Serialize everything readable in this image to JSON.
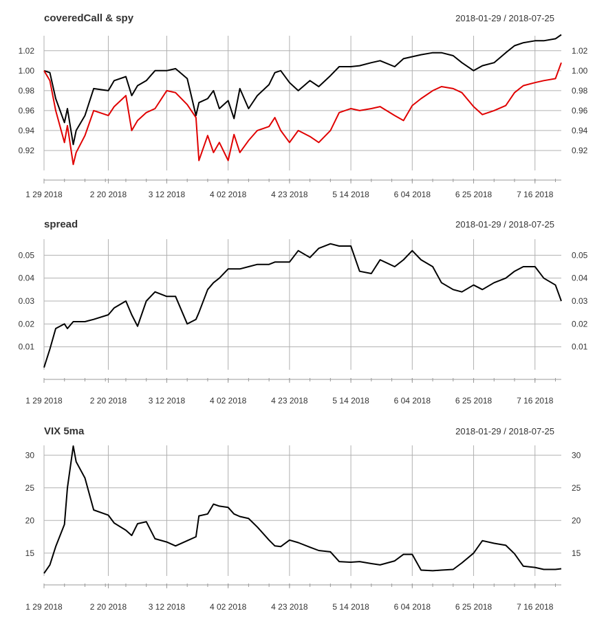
{
  "colors": {
    "primary": "#000000",
    "secondary": "#e00000",
    "grid": "#b0b0b0",
    "axis": "#999999",
    "text": "#333333"
  },
  "x_tick_labels": [
    "1 29 2018",
    "2 20 2018",
    "3 12 2018",
    "4 02 2018",
    "4 23 2018",
    "5 14 2018",
    "6 04 2018",
    "6 25 2018",
    "7 16 2018"
  ],
  "chart_data": [
    {
      "type": "line",
      "title": "coveredCall & spy",
      "date_range": "2018-01-29 / 2018-07-25",
      "ylim": [
        0.9,
        1.035
      ],
      "yticks": [
        "0.92",
        "0.94",
        "0.96",
        "0.98",
        "1.00",
        "1.02"
      ],
      "ytick_values": [
        0.92,
        0.94,
        0.96,
        0.98,
        1.0,
        1.02
      ],
      "x_tick_dates": [
        "2018-01-29",
        "2018-02-20",
        "2018-03-12",
        "2018-04-02",
        "2018-04-23",
        "2018-05-14",
        "2018-06-04",
        "2018-06-25",
        "2018-07-16"
      ],
      "x": [
        "2018-01-29",
        "2018-01-31",
        "2018-02-02",
        "2018-02-05",
        "2018-02-06",
        "2018-02-08",
        "2018-02-09",
        "2018-02-12",
        "2018-02-15",
        "2018-02-20",
        "2018-02-22",
        "2018-02-26",
        "2018-02-28",
        "2018-03-02",
        "2018-03-05",
        "2018-03-08",
        "2018-03-12",
        "2018-03-15",
        "2018-03-19",
        "2018-03-22",
        "2018-03-23",
        "2018-03-26",
        "2018-03-28",
        "2018-03-30",
        "2018-04-02",
        "2018-04-04",
        "2018-04-06",
        "2018-04-09",
        "2018-04-12",
        "2018-04-16",
        "2018-04-18",
        "2018-04-20",
        "2018-04-23",
        "2018-04-26",
        "2018-04-30",
        "2018-05-03",
        "2018-05-07",
        "2018-05-10",
        "2018-05-14",
        "2018-05-17",
        "2018-05-21",
        "2018-05-24",
        "2018-05-29",
        "2018-06-01",
        "2018-06-04",
        "2018-06-07",
        "2018-06-11",
        "2018-06-14",
        "2018-06-18",
        "2018-06-21",
        "2018-06-25",
        "2018-06-28",
        "2018-07-02",
        "2018-07-06",
        "2018-07-09",
        "2018-07-12",
        "2018-07-16",
        "2018-07-19",
        "2018-07-23",
        "2018-07-25"
      ],
      "series": [
        {
          "name": "coveredCall",
          "color": "#000000",
          "values": [
            1.0,
            0.998,
            0.972,
            0.948,
            0.962,
            0.926,
            0.94,
            0.955,
            0.982,
            0.98,
            0.99,
            0.994,
            0.975,
            0.985,
            0.99,
            1.0,
            1.0,
            1.002,
            0.992,
            0.955,
            0.968,
            0.972,
            0.98,
            0.962,
            0.97,
            0.952,
            0.982,
            0.962,
            0.975,
            0.986,
            0.998,
            1.0,
            0.988,
            0.98,
            0.99,
            0.984,
            0.995,
            1.004,
            1.004,
            1.005,
            1.008,
            1.01,
            1.004,
            1.012,
            1.014,
            1.016,
            1.018,
            1.018,
            1.015,
            1.008,
            1.0,
            1.005,
            1.008,
            1.018,
            1.025,
            1.028,
            1.03,
            1.03,
            1.032,
            1.036
          ]
        },
        {
          "name": "spy",
          "color": "#e00000",
          "values": [
            1.0,
            0.99,
            0.96,
            0.928,
            0.945,
            0.906,
            0.918,
            0.935,
            0.96,
            0.955,
            0.964,
            0.975,
            0.94,
            0.95,
            0.958,
            0.962,
            0.98,
            0.978,
            0.966,
            0.953,
            0.91,
            0.935,
            0.918,
            0.928,
            0.91,
            0.936,
            0.918,
            0.93,
            0.94,
            0.944,
            0.953,
            0.94,
            0.928,
            0.94,
            0.934,
            0.928,
            0.94,
            0.958,
            0.962,
            0.96,
            0.962,
            0.964,
            0.955,
            0.95,
            0.965,
            0.972,
            0.98,
            0.984,
            0.982,
            0.978,
            0.964,
            0.956,
            0.96,
            0.965,
            0.978,
            0.985,
            0.988,
            0.99,
            0.992,
            1.008
          ]
        }
      ]
    },
    {
      "type": "line",
      "title": "spread",
      "date_range": "2018-01-29 / 2018-07-25",
      "ylim": [
        0.0,
        0.057
      ],
      "yticks": [
        "0.01",
        "0.02",
        "0.03",
        "0.04",
        "0.05"
      ],
      "ytick_values": [
        0.01,
        0.02,
        0.03,
        0.04,
        0.05
      ],
      "x_tick_dates": [
        "2018-01-29",
        "2018-02-20",
        "2018-03-12",
        "2018-04-02",
        "2018-04-23",
        "2018-05-14",
        "2018-06-04",
        "2018-06-25",
        "2018-07-16"
      ],
      "x": [
        "2018-01-29",
        "2018-01-31",
        "2018-02-02",
        "2018-02-05",
        "2018-02-06",
        "2018-02-08",
        "2018-02-09",
        "2018-02-12",
        "2018-02-15",
        "2018-02-20",
        "2018-02-22",
        "2018-02-26",
        "2018-02-28",
        "2018-03-02",
        "2018-03-05",
        "2018-03-08",
        "2018-03-12",
        "2018-03-15",
        "2018-03-19",
        "2018-03-22",
        "2018-03-23",
        "2018-03-26",
        "2018-03-28",
        "2018-03-30",
        "2018-04-02",
        "2018-04-04",
        "2018-04-06",
        "2018-04-09",
        "2018-04-12",
        "2018-04-16",
        "2018-04-18",
        "2018-04-20",
        "2018-04-23",
        "2018-04-26",
        "2018-04-30",
        "2018-05-03",
        "2018-05-07",
        "2018-05-10",
        "2018-05-14",
        "2018-05-17",
        "2018-05-21",
        "2018-05-24",
        "2018-05-29",
        "2018-06-01",
        "2018-06-04",
        "2018-06-07",
        "2018-06-11",
        "2018-06-14",
        "2018-06-18",
        "2018-06-21",
        "2018-06-25",
        "2018-06-28",
        "2018-07-02",
        "2018-07-06",
        "2018-07-09",
        "2018-07-12",
        "2018-07-16",
        "2018-07-19",
        "2018-07-23",
        "2018-07-25"
      ],
      "series": [
        {
          "name": "",
          "color": "#000000",
          "values": [
            0.001,
            0.009,
            0.018,
            0.02,
            0.018,
            0.021,
            0.021,
            0.021,
            0.022,
            0.024,
            0.027,
            0.03,
            0.024,
            0.019,
            0.03,
            0.034,
            0.032,
            0.032,
            0.02,
            0.022,
            0.025,
            0.035,
            0.038,
            0.04,
            0.044,
            0.044,
            0.044,
            0.045,
            0.046,
            0.046,
            0.047,
            0.047,
            0.047,
            0.052,
            0.049,
            0.053,
            0.055,
            0.054,
            0.054,
            0.043,
            0.042,
            0.048,
            0.045,
            0.048,
            0.052,
            0.048,
            0.045,
            0.038,
            0.035,
            0.034,
            0.037,
            0.035,
            0.038,
            0.04,
            0.043,
            0.045,
            0.045,
            0.04,
            0.037,
            0.03
          ]
        }
      ]
    },
    {
      "type": "line",
      "title": "VIX 5ma",
      "date_range": "2018-01-29 / 2018-07-25",
      "ylim": [
        11.5,
        31.5
      ],
      "yticks": [
        "15",
        "20",
        "25",
        "30"
      ],
      "ytick_values": [
        15,
        20,
        25,
        30
      ],
      "x_tick_dates": [
        "2018-01-29",
        "2018-02-20",
        "2018-03-12",
        "2018-04-02",
        "2018-04-23",
        "2018-05-14",
        "2018-06-04",
        "2018-06-25",
        "2018-07-16"
      ],
      "x": [
        "2018-01-29",
        "2018-01-31",
        "2018-02-02",
        "2018-02-05",
        "2018-02-06",
        "2018-02-08",
        "2018-02-09",
        "2018-02-12",
        "2018-02-15",
        "2018-02-20",
        "2018-02-22",
        "2018-02-26",
        "2018-02-28",
        "2018-03-02",
        "2018-03-05",
        "2018-03-08",
        "2018-03-12",
        "2018-03-15",
        "2018-03-19",
        "2018-03-22",
        "2018-03-23",
        "2018-03-26",
        "2018-03-28",
        "2018-03-30",
        "2018-04-02",
        "2018-04-04",
        "2018-04-06",
        "2018-04-09",
        "2018-04-12",
        "2018-04-16",
        "2018-04-18",
        "2018-04-20",
        "2018-04-23",
        "2018-04-26",
        "2018-04-30",
        "2018-05-03",
        "2018-05-07",
        "2018-05-10",
        "2018-05-14",
        "2018-05-17",
        "2018-05-21",
        "2018-05-24",
        "2018-05-29",
        "2018-06-01",
        "2018-06-04",
        "2018-06-07",
        "2018-06-11",
        "2018-06-14",
        "2018-06-18",
        "2018-06-21",
        "2018-06-25",
        "2018-06-28",
        "2018-07-02",
        "2018-07-06",
        "2018-07-09",
        "2018-07-12",
        "2018-07-16",
        "2018-07-19",
        "2018-07-23",
        "2018-07-25"
      ],
      "series": [
        {
          "name": "",
          "color": "#000000",
          "values": [
            11.9,
            13.2,
            16.0,
            19.4,
            25.0,
            31.4,
            29.0,
            26.5,
            21.6,
            20.8,
            19.6,
            18.5,
            17.7,
            19.5,
            19.8,
            17.2,
            16.7,
            16.1,
            16.9,
            17.5,
            20.7,
            21.0,
            22.5,
            22.2,
            22.0,
            21.0,
            20.6,
            20.3,
            19.0,
            17.0,
            16.1,
            16.0,
            17.0,
            16.6,
            15.9,
            15.4,
            15.2,
            13.7,
            13.6,
            13.7,
            13.4,
            13.2,
            13.8,
            14.8,
            14.8,
            12.4,
            12.3,
            12.4,
            12.5,
            13.5,
            15.0,
            16.9,
            16.5,
            16.2,
            14.9,
            13.0,
            12.8,
            12.5,
            12.5,
            12.6
          ]
        }
      ]
    }
  ]
}
